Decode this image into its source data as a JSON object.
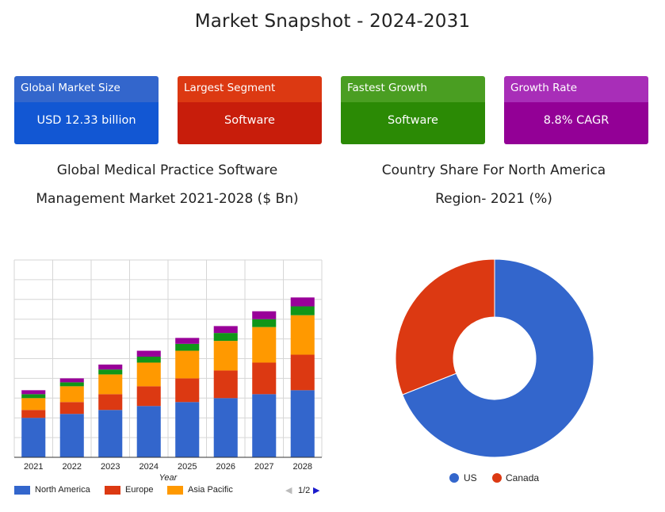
{
  "page_title": "Market Snapshot - 2024-2031",
  "cards": [
    {
      "label": "Global Market Size",
      "value": "USD 12.33 billion",
      "head_color": "#3366cc",
      "body_color": "#1257d3"
    },
    {
      "label": "Largest Segment",
      "value": "Software",
      "head_color": "#dc3912",
      "body_color": "#c81d0b"
    },
    {
      "label": "Fastest Growth",
      "value": "Software",
      "head_color": "#4a9e22",
      "body_color": "#2b8a05"
    },
    {
      "label": "Growth Rate",
      "value": "8.8% CAGR",
      "head_color": "#a82eb8",
      "body_color": "#930096"
    }
  ],
  "chart_data": [
    {
      "type": "bar",
      "stacked": true,
      "title_line1": "Global Medical Practice Software",
      "title_line2": "Management Market 2021-2028 ($ Bn)",
      "xlabel": "Year",
      "categories": [
        "2021",
        "2022",
        "2023",
        "2024",
        "2025",
        "2026",
        "2027",
        "2028"
      ],
      "ylim": [
        0,
        10
      ],
      "grid": true,
      "series": [
        {
          "name": "North America",
          "color": "#3366cc",
          "values": [
            2.0,
            2.2,
            2.4,
            2.6,
            2.8,
            3.0,
            3.2,
            3.4
          ]
        },
        {
          "name": "Europe",
          "color": "#dc3912",
          "values": [
            0.4,
            0.6,
            0.8,
            1.0,
            1.2,
            1.4,
            1.6,
            1.8
          ]
        },
        {
          "name": "Asia Pacific",
          "color": "#ff9900",
          "values": [
            0.6,
            0.8,
            1.0,
            1.2,
            1.4,
            1.5,
            1.8,
            2.0
          ]
        },
        {
          "name": "",
          "color": "#109618",
          "values": [
            0.2,
            0.2,
            0.25,
            0.3,
            0.35,
            0.4,
            0.4,
            0.45
          ]
        },
        {
          "name": "",
          "color": "#990099",
          "values": [
            0.2,
            0.2,
            0.25,
            0.3,
            0.3,
            0.35,
            0.4,
            0.45
          ]
        }
      ],
      "legend_position": "bottom",
      "legend_page": "1/2"
    },
    {
      "type": "pie",
      "donut": true,
      "title_line1": "Country Share For North America",
      "title_line2": "Region- 2021 (%)",
      "slices": [
        {
          "name": "US",
          "value": 69,
          "color": "#3366cc"
        },
        {
          "name": "Canada",
          "value": 31,
          "color": "#dc3912"
        }
      ],
      "legend_position": "bottom"
    }
  ]
}
